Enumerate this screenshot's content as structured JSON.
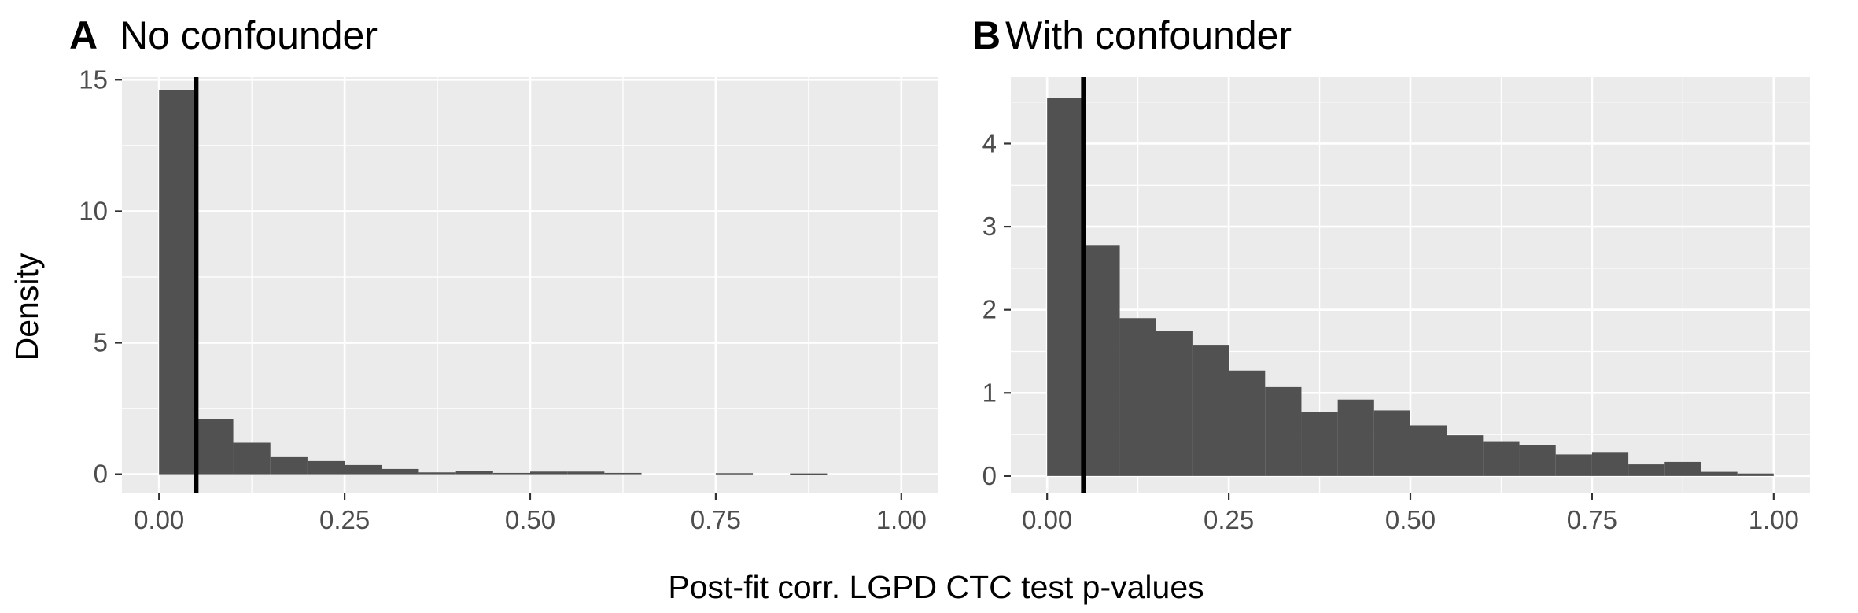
{
  "axis": {
    "xlabel": "Post-fit corr. LGPD CTC test p-values",
    "ylabel": "Density"
  },
  "chart_data": [
    {
      "type": "bar",
      "tag": "A",
      "title": "No confounder",
      "xlabel": "Post-fit corr. LGPD CTC test p-values",
      "ylabel": "Density",
      "bin_width": 0.05,
      "bin_starts": [
        0.0,
        0.05,
        0.1,
        0.15,
        0.2,
        0.25,
        0.3,
        0.35,
        0.4,
        0.45,
        0.5,
        0.55,
        0.6,
        0.65,
        0.7,
        0.75,
        0.8,
        0.85,
        0.9,
        0.95
      ],
      "values": [
        14.6,
        2.1,
        1.2,
        0.65,
        0.5,
        0.35,
        0.2,
        0.07,
        0.12,
        0.05,
        0.1,
        0.1,
        0.05,
        0.0,
        0.0,
        0.04,
        0.0,
        0.03,
        0.0,
        0.0
      ],
      "xlim": [
        -0.05,
        1.05
      ],
      "ylim": [
        -0.7,
        15.1
      ],
      "x_ticks": [
        0,
        0.25,
        0.5,
        0.75,
        1
      ],
      "x_tick_labels": [
        "0.00",
        "0.25",
        "0.50",
        "0.75",
        "1.00"
      ],
      "y_ticks": [
        0,
        5,
        10,
        15
      ],
      "y_tick_labels": [
        "0",
        "5",
        "10",
        "15"
      ],
      "vline_x": 0.05,
      "grid": true,
      "bar_color": "#525152",
      "panel_bg": "#ebebeb",
      "grid_color": "#ffffff",
      "vline_color": "#000000"
    },
    {
      "type": "bar",
      "tag": "B",
      "title": "With confounder",
      "xlabel": "Post-fit corr. LGPD CTC test p-values",
      "ylabel": "Density",
      "bin_width": 0.05,
      "bin_starts": [
        0.0,
        0.05,
        0.1,
        0.15,
        0.2,
        0.25,
        0.3,
        0.35,
        0.4,
        0.45,
        0.5,
        0.55,
        0.6,
        0.65,
        0.7,
        0.75,
        0.8,
        0.85,
        0.9,
        0.95
      ],
      "values": [
        4.55,
        2.78,
        1.9,
        1.75,
        1.57,
        1.27,
        1.07,
        0.77,
        0.92,
        0.79,
        0.61,
        0.49,
        0.41,
        0.37,
        0.26,
        0.28,
        0.14,
        0.17,
        0.05,
        0.03
      ],
      "xlim": [
        -0.05,
        1.05
      ],
      "ylim": [
        -0.2,
        4.8
      ],
      "x_ticks": [
        0,
        0.25,
        0.5,
        0.75,
        1
      ],
      "x_tick_labels": [
        "0.00",
        "0.25",
        "0.50",
        "0.75",
        "1.00"
      ],
      "y_ticks": [
        0,
        1,
        2,
        3,
        4
      ],
      "y_tick_labels": [
        "0",
        "1",
        "2",
        "3",
        "4"
      ],
      "vline_x": 0.05,
      "grid": true,
      "bar_color": "#525152",
      "panel_bg": "#ebebeb",
      "grid_color": "#ffffff",
      "vline_color": "#000000"
    }
  ]
}
